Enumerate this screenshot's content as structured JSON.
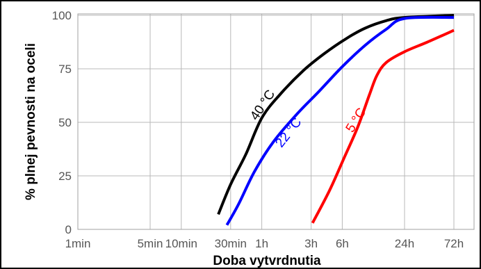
{
  "chart_data": {
    "type": "line",
    "title": "",
    "xlabel": "Doba vytvrdnutia",
    "ylabel": "% plnej pevnosti na oceli",
    "x_scale": "log",
    "x_unit": "hours",
    "x_ticks": [
      {
        "label": "1min",
        "value": 0.016667
      },
      {
        "label": "5min",
        "value": 0.083333
      },
      {
        "label": "10min",
        "value": 0.166667
      },
      {
        "label": "30min",
        "value": 0.5
      },
      {
        "label": "1h",
        "value": 1
      },
      {
        "label": "3h",
        "value": 3
      },
      {
        "label": "6h",
        "value": 6
      },
      {
        "label": "24h",
        "value": 24
      },
      {
        "label": "72h",
        "value": 72
      }
    ],
    "y_ticks": [
      {
        "label": "0",
        "value": 0
      },
      {
        "label": "25",
        "value": 25
      },
      {
        "label": "50",
        "value": 50
      },
      {
        "label": "75",
        "value": 75
      },
      {
        "label": "100",
        "value": 100
      }
    ],
    "ylim": [
      0,
      100
    ],
    "grid": true,
    "series": [
      {
        "name": "40 °C",
        "color": "#000000",
        "points": [
          [
            0.38,
            7
          ],
          [
            0.5,
            21
          ],
          [
            0.7,
            35
          ],
          [
            1.0,
            52
          ],
          [
            1.5,
            63
          ],
          [
            2.5,
            74
          ],
          [
            4.0,
            82
          ],
          [
            6.5,
            89
          ],
          [
            10,
            94
          ],
          [
            16,
            97.5
          ],
          [
            24,
            99
          ],
          [
            72,
            100
          ]
        ]
      },
      {
        "name": "22 °C",
        "color": "#0000ff",
        "points": [
          [
            0.46,
            2
          ],
          [
            0.6,
            12
          ],
          [
            0.85,
            27
          ],
          [
            1.3,
            41
          ],
          [
            2.2,
            54
          ],
          [
            3.5,
            64
          ],
          [
            6.0,
            76
          ],
          [
            10,
            86
          ],
          [
            16,
            93.5
          ],
          [
            24,
            98.5
          ],
          [
            72,
            99
          ]
        ]
      },
      {
        "name": "5 °C",
        "color": "#ff0000",
        "points": [
          [
            3.1,
            3
          ],
          [
            4.5,
            18
          ],
          [
            6.2,
            33
          ],
          [
            8.5,
            48
          ],
          [
            11,
            63
          ],
          [
            13,
            72
          ],
          [
            16,
            78
          ],
          [
            24,
            83
          ],
          [
            40,
            87.5
          ],
          [
            72,
            93
          ]
        ]
      }
    ]
  }
}
